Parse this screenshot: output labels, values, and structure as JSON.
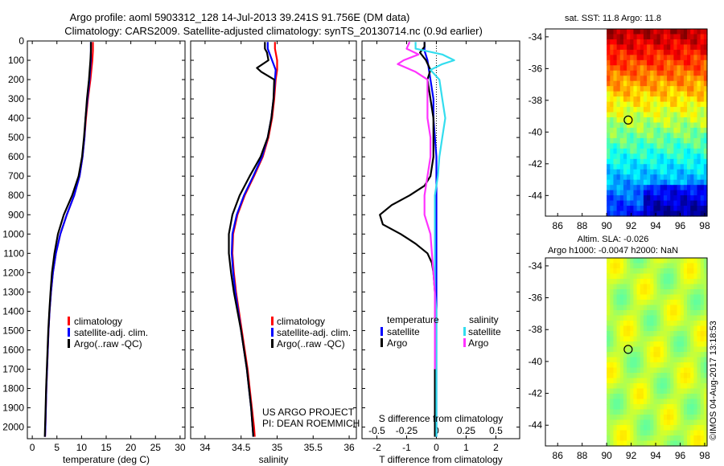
{
  "header": {
    "line1": "Argo profile: aoml 5903312_128 14-Jul-2013 39.241S 91.756E (DM data)",
    "line2": "Climatology: CARS2009. Satellite-adjusted climatology: synTS_20130714.nc (0.9d earlier)"
  },
  "side_label": "©IMOS 04-Aug-2017 13:18:53",
  "project_label": {
    "line1": "US ARGO PROJECT",
    "line2": "PI: DEAN ROEMMICH"
  },
  "colors": {
    "climatology": "#ff0000",
    "satellite": "#0000ff",
    "argo": "#000000",
    "argo_sal": "#ff33ff",
    "sat_sal": "#33ddee"
  },
  "chart_data": [
    {
      "id": "temperature",
      "type": "line",
      "xlabel": "temperature (deg C)",
      "xlim": [
        -1,
        31
      ],
      "xticks": [
        0,
        5,
        10,
        15,
        20,
        25,
        30
      ],
      "ylim": [
        2060,
        0
      ],
      "yticks": [
        0,
        100,
        200,
        300,
        400,
        500,
        600,
        700,
        800,
        900,
        1000,
        1100,
        1200,
        1300,
        1400,
        1500,
        1600,
        1700,
        1800,
        1900,
        2000
      ],
      "legend": [
        "climatology",
        "satellite-adj. clim.",
        "Argo(..raw -QC)"
      ],
      "series": [
        {
          "name": "climatology",
          "color": "#ff0000",
          "depth": [
            5,
            50,
            100,
            200,
            300,
            400,
            500,
            600,
            700,
            800,
            900,
            1000,
            1100,
            1200,
            1300,
            1400,
            1500,
            1600,
            1700,
            1800,
            1900,
            2000,
            2050
          ],
          "values": [
            12.3,
            12.3,
            12.2,
            11.8,
            11.3,
            10.9,
            10.6,
            10.2,
            9.6,
            8.5,
            7.0,
            5.7,
            4.8,
            4.2,
            3.8,
            3.5,
            3.3,
            3.15,
            3.0,
            2.85,
            2.75,
            2.65,
            2.6
          ]
        },
        {
          "name": "satellite-adj. clim.",
          "color": "#0000ff",
          "depth": [
            5,
            50,
            100,
            200,
            300,
            400,
            500,
            600,
            700,
            800,
            900,
            1000,
            1100,
            1200,
            1300,
            1400,
            1500,
            1600,
            1700,
            1800,
            1900,
            2000,
            2050
          ],
          "values": [
            11.9,
            11.9,
            11.9,
            11.6,
            11.2,
            10.8,
            10.6,
            10.2,
            9.6,
            8.5,
            7.0,
            5.7,
            4.8,
            4.2,
            3.8,
            3.5,
            3.3,
            3.15,
            3.0,
            2.85,
            2.75,
            2.65,
            2.6
          ]
        },
        {
          "name": "Argo(..raw -QC)",
          "color": "#000000",
          "depth": [
            5,
            50,
            100,
            200,
            300,
            400,
            500,
            600,
            700,
            800,
            900,
            1000,
            1100,
            1200,
            1300,
            1400,
            1500,
            1600,
            1700,
            1800,
            1900,
            2000,
            2050
          ],
          "values": [
            11.9,
            11.9,
            11.8,
            11.5,
            11.1,
            10.8,
            10.5,
            10.1,
            9.4,
            8.1,
            6.4,
            5.2,
            4.5,
            4.0,
            3.7,
            3.45,
            3.25,
            3.1,
            2.95,
            2.8,
            2.7,
            2.6,
            2.55
          ]
        }
      ]
    },
    {
      "id": "salinity",
      "type": "line",
      "xlabel": "salinity",
      "xlim": [
        33.8,
        36.1
      ],
      "xticks": [
        34,
        34.5,
        35,
        35.5,
        36
      ],
      "ylim": [
        2060,
        0
      ],
      "legend": [
        "climatology",
        "satellite-adj. clim.",
        "Argo(..raw -QC)"
      ],
      "series": [
        {
          "name": "climatology",
          "color": "#ff0000",
          "depth": [
            5,
            40,
            100,
            150,
            200,
            300,
            400,
            500,
            600,
            700,
            800,
            900,
            1000,
            1100,
            1200,
            1300,
            1400,
            1500,
            1600,
            1700,
            1800,
            1900,
            2000,
            2050
          ],
          "values": [
            34.97,
            34.97,
            35.0,
            35.0,
            34.98,
            34.96,
            34.93,
            34.88,
            34.8,
            34.68,
            34.55,
            34.45,
            34.39,
            34.38,
            34.4,
            34.43,
            34.47,
            34.51,
            34.55,
            34.59,
            34.62,
            34.65,
            34.68,
            34.69
          ]
        },
        {
          "name": "satellite-adj. clim.",
          "color": "#0000ff",
          "depth": [
            5,
            40,
            100,
            150,
            200,
            300,
            400,
            500,
            600,
            700,
            800,
            900,
            1000,
            1100,
            1200,
            1300,
            1400,
            1500,
            1600,
            1700,
            1800,
            1900,
            2000,
            2050
          ],
          "values": [
            34.87,
            34.87,
            34.93,
            34.98,
            34.97,
            34.95,
            34.92,
            34.87,
            34.79,
            34.67,
            34.54,
            34.44,
            34.38,
            34.37,
            34.39,
            34.42,
            34.46,
            34.5,
            34.54,
            34.58,
            34.61,
            34.64,
            34.66,
            34.67
          ]
        },
        {
          "name": "Argo(..raw -QC)",
          "color": "#000000",
          "depth": [
            5,
            40,
            60,
            100,
            140,
            160,
            200,
            300,
            400,
            500,
            600,
            700,
            800,
            900,
            1000,
            1100,
            1200,
            1300,
            1400,
            1500,
            1600,
            1700,
            1800,
            1900,
            2000,
            2050
          ],
          "values": [
            34.83,
            34.83,
            34.86,
            34.88,
            34.72,
            34.78,
            34.96,
            34.95,
            34.92,
            34.87,
            34.77,
            34.62,
            34.48,
            34.38,
            34.33,
            34.33,
            34.36,
            34.4,
            34.45,
            34.5,
            34.54,
            34.58,
            34.61,
            34.64,
            34.66,
            34.67
          ]
        }
      ]
    },
    {
      "id": "difference",
      "type": "line",
      "xlabel": "T difference from climatology",
      "xlabel_top": "S difference from climatology",
      "xlim": [
        -2.5,
        2.8
      ],
      "xticks": [
        -2,
        -1,
        0,
        1,
        2
      ],
      "xticks_top": [
        {
          "pos": -2,
          "label": "-0.5"
        },
        {
          "pos": -1,
          "label": "-0.25"
        },
        {
          "pos": 0,
          "label": "0"
        },
        {
          "pos": 1,
          "label": "0.25"
        },
        {
          "pos": 2,
          "label": "0.5"
        }
      ],
      "ylim": [
        2060,
        0
      ],
      "legend_titles": [
        "temperature",
        "salinity"
      ],
      "legend": [
        "satellite",
        "Argo",
        "satellite",
        "Argo"
      ],
      "series": [
        {
          "name": "temperature satellite",
          "color": "#0000ff",
          "depth": [
            5,
            50,
            100,
            200,
            300,
            400,
            600,
            800,
            1000,
            1200,
            1400,
            1600,
            1800,
            2000,
            2050
          ],
          "values": [
            -0.4,
            -0.4,
            -0.3,
            -0.2,
            -0.1,
            -0.1,
            0.0,
            0.0,
            0.0,
            0.0,
            0.0,
            0.0,
            0.0,
            0.0,
            0.0
          ]
        },
        {
          "name": "temperature Argo",
          "color": "#000000",
          "depth": [
            5,
            30,
            60,
            100,
            150,
            200,
            300,
            400,
            500,
            600,
            700,
            750,
            800,
            850,
            900,
            950,
            1000,
            1050,
            1100,
            1150,
            1200,
            1300,
            1400,
            1500,
            1600,
            1700,
            1800,
            1900,
            2000,
            2050
          ],
          "values": [
            -0.4,
            -0.4,
            -0.55,
            -0.35,
            -0.2,
            -0.3,
            -0.2,
            -0.1,
            -0.1,
            -0.1,
            -0.2,
            -0.4,
            -0.9,
            -1.5,
            -1.9,
            -1.8,
            -1.2,
            -0.7,
            -0.3,
            -0.15,
            -0.1,
            -0.05,
            -0.05,
            -0.05,
            -0.05,
            -0.05,
            -0.05,
            -0.05,
            -0.05,
            -0.05
          ]
        },
        {
          "name": "salinity satellite",
          "color": "#33ddee",
          "depth": [
            5,
            40,
            70,
            100,
            120,
            150,
            200,
            300,
            400,
            500,
            600,
            700,
            800,
            900,
            1000,
            1100,
            1200,
            1300,
            1400,
            1500,
            1600,
            1700,
            1800,
            1900,
            2000,
            2050
          ],
          "values": [
            -0.7,
            -0.7,
            0.2,
            0.6,
            0.2,
            -0.2,
            0.1,
            0.2,
            0.3,
            0.2,
            0.1,
            0.05,
            -0.05,
            -0.05,
            -0.05,
            -0.05,
            -0.05,
            -0.05,
            0.0,
            0.0,
            0.0,
            0.0,
            0.0,
            0.0,
            0.0,
            0.0
          ]
        },
        {
          "name": "salinity Argo",
          "color": "#ff33ff",
          "depth": [
            5,
            40,
            70,
            100,
            120,
            160,
            200,
            300,
            400,
            500,
            600,
            700,
            800,
            900,
            1000,
            1100,
            1200,
            1300,
            1400,
            1500,
            1600,
            1700
          ],
          "values": [
            -0.9,
            -1.0,
            -0.6,
            -1.1,
            -1.3,
            -0.7,
            -0.3,
            -0.3,
            -0.3,
            -0.2,
            -0.2,
            -0.3,
            -0.4,
            -0.4,
            -0.2,
            -0.15,
            -0.1,
            -0.05,
            -0.05,
            -0.05,
            -0.05,
            -0.05
          ]
        }
      ]
    },
    {
      "id": "sst_map",
      "type": "heatmap",
      "title": "sat. SST: 11.8 Argo: 11.8",
      "xlim": [
        85,
        98.2
      ],
      "xticks": [
        86,
        88,
        90,
        92,
        94,
        96,
        98
      ],
      "ylim": [
        -45.3,
        -33.5
      ],
      "yticks": [
        -34,
        -36,
        -38,
        -40,
        -42,
        -44
      ],
      "data_lon_range": [
        90,
        98.2
      ],
      "marker": {
        "lon": 91.756,
        "lat": -39.241
      }
    },
    {
      "id": "sla_map",
      "type": "heatmap",
      "title": "Altim. SLA: -0.026",
      "subtitle": "Argo h1000: -0.0047 h2000: NaN",
      "xlim": [
        85,
        98.2
      ],
      "xticks": [
        86,
        88,
        90,
        92,
        94,
        96,
        98
      ],
      "ylim": [
        -45.3,
        -33.5
      ],
      "yticks": [
        -34,
        -36,
        -38,
        -40,
        -42,
        -44
      ],
      "data_lon_range": [
        90,
        98.2
      ],
      "marker": {
        "lon": 91.756,
        "lat": -39.241
      }
    }
  ]
}
